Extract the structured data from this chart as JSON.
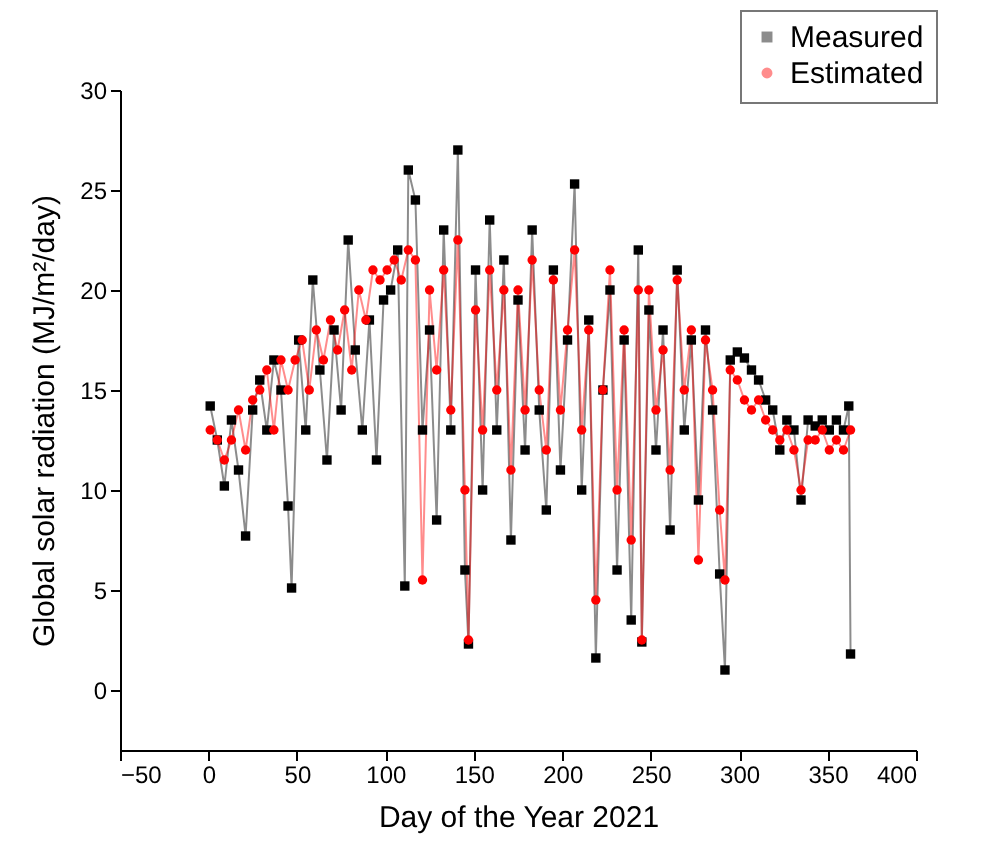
{
  "chart_data": {
    "type": "line",
    "xlabel": "Day of the Year 2021",
    "ylabel": "Global solar radiation (MJ/m²/day)",
    "xlim": [
      -50,
      400
    ],
    "xticks": [
      -50,
      0,
      50,
      100,
      150,
      200,
      250,
      300,
      350,
      400
    ],
    "ylim": [
      -3,
      30
    ],
    "yticks": [
      0,
      5,
      10,
      15,
      20,
      25,
      30
    ],
    "grid": false,
    "legend": "top right",
    "series": [
      {
        "name": "Measured",
        "color": "#000000",
        "marker": "square",
        "x": [
          1,
          5,
          9,
          13,
          17,
          21,
          25,
          29,
          33,
          37,
          41,
          45,
          47,
          51,
          55,
          59,
          63,
          67,
          71,
          75,
          79,
          83,
          87,
          91,
          95,
          99,
          103,
          107,
          111,
          113,
          117,
          121,
          125,
          129,
          133,
          137,
          141,
          145,
          147,
          151,
          155,
          159,
          163,
          167,
          171,
          175,
          179,
          183,
          187,
          191,
          195,
          199,
          203,
          207,
          211,
          215,
          219,
          223,
          227,
          231,
          235,
          239,
          243,
          245,
          249,
          253,
          257,
          261,
          265,
          269,
          273,
          277,
          281,
          285,
          289,
          292,
          295,
          299,
          303,
          307,
          311,
          315,
          319,
          323,
          327,
          331,
          335,
          339,
          343,
          347,
          351,
          355,
          359,
          362,
          363
        ],
        "values": [
          14.2,
          12.5,
          10.2,
          13.5,
          11.0,
          7.7,
          14.0,
          15.5,
          13.0,
          16.5,
          15.0,
          9.2,
          5.1,
          17.5,
          13.0,
          20.5,
          16.0,
          11.5,
          18.0,
          14.0,
          22.5,
          17.0,
          13.0,
          18.5,
          11.5,
          19.5,
          20.0,
          22.0,
          5.2,
          26.0,
          24.5,
          13.0,
          18.0,
          8.5,
          23.0,
          13.0,
          27.0,
          6.0,
          2.3,
          21.0,
          10.0,
          23.5,
          13.0,
          21.5,
          7.5,
          19.5,
          12.0,
          23.0,
          14.0,
          9.0,
          21.0,
          11.0,
          17.5,
          25.3,
          10.0,
          18.5,
          1.6,
          15.0,
          20.0,
          6.0,
          17.5,
          3.5,
          22.0,
          2.4,
          19.0,
          12.0,
          18.0,
          8.0,
          21.0,
          13.0,
          17.5,
          9.5,
          18.0,
          14.0,
          5.8,
          1.0,
          16.5,
          16.9,
          16.6,
          16.0,
          15.5,
          14.5,
          14.0,
          12.0,
          13.5,
          13.0,
          9.5,
          13.5,
          13.2,
          13.5,
          13.0,
          13.5,
          13.0,
          14.2,
          1.8
        ]
      },
      {
        "name": "Estimated",
        "color": "#ff0000",
        "marker": "circle",
        "x": [
          1,
          5,
          9,
          13,
          17,
          21,
          25,
          29,
          33,
          37,
          41,
          45,
          49,
          53,
          57,
          61,
          65,
          69,
          73,
          77,
          81,
          85,
          89,
          93,
          97,
          101,
          105,
          109,
          113,
          117,
          121,
          125,
          129,
          133,
          137,
          141,
          145,
          147,
          151,
          155,
          159,
          163,
          167,
          171,
          175,
          179,
          183,
          187,
          191,
          195,
          199,
          203,
          207,
          211,
          215,
          219,
          223,
          227,
          231,
          235,
          239,
          243,
          245,
          249,
          253,
          257,
          261,
          265,
          269,
          273,
          277,
          281,
          285,
          289,
          292,
          295,
          299,
          303,
          307,
          311,
          315,
          319,
          323,
          327,
          331,
          335,
          339,
          343,
          347,
          351,
          355,
          359,
          363
        ],
        "values": [
          13.0,
          12.5,
          11.5,
          12.5,
          14.0,
          12.0,
          14.5,
          15.0,
          16.0,
          13.0,
          16.5,
          15.0,
          16.5,
          17.5,
          15.0,
          18.0,
          16.5,
          18.5,
          17.0,
          19.0,
          16.0,
          20.0,
          18.5,
          21.0,
          20.5,
          21.0,
          21.5,
          20.5,
          22.0,
          21.5,
          5.5,
          20.0,
          16.0,
          21.0,
          14.0,
          22.5,
          10.0,
          2.5,
          19.0,
          13.0,
          21.0,
          15.0,
          20.0,
          11.0,
          20.0,
          14.0,
          21.5,
          15.0,
          12.0,
          20.5,
          14.0,
          18.0,
          22.0,
          13.0,
          18.0,
          4.5,
          15.0,
          21.0,
          10.0,
          18.0,
          7.5,
          20.0,
          2.5,
          20.0,
          14.0,
          17.0,
          11.0,
          20.5,
          15.0,
          18.0,
          6.5,
          17.5,
          15.0,
          9.0,
          5.5,
          16.0,
          15.5,
          14.5,
          14.0,
          14.5,
          13.5,
          13.0,
          12.5,
          13.0,
          12.0,
          10.0,
          12.5,
          12.5,
          13.0,
          12.0,
          12.5,
          12.0,
          13.0
        ]
      }
    ]
  }
}
